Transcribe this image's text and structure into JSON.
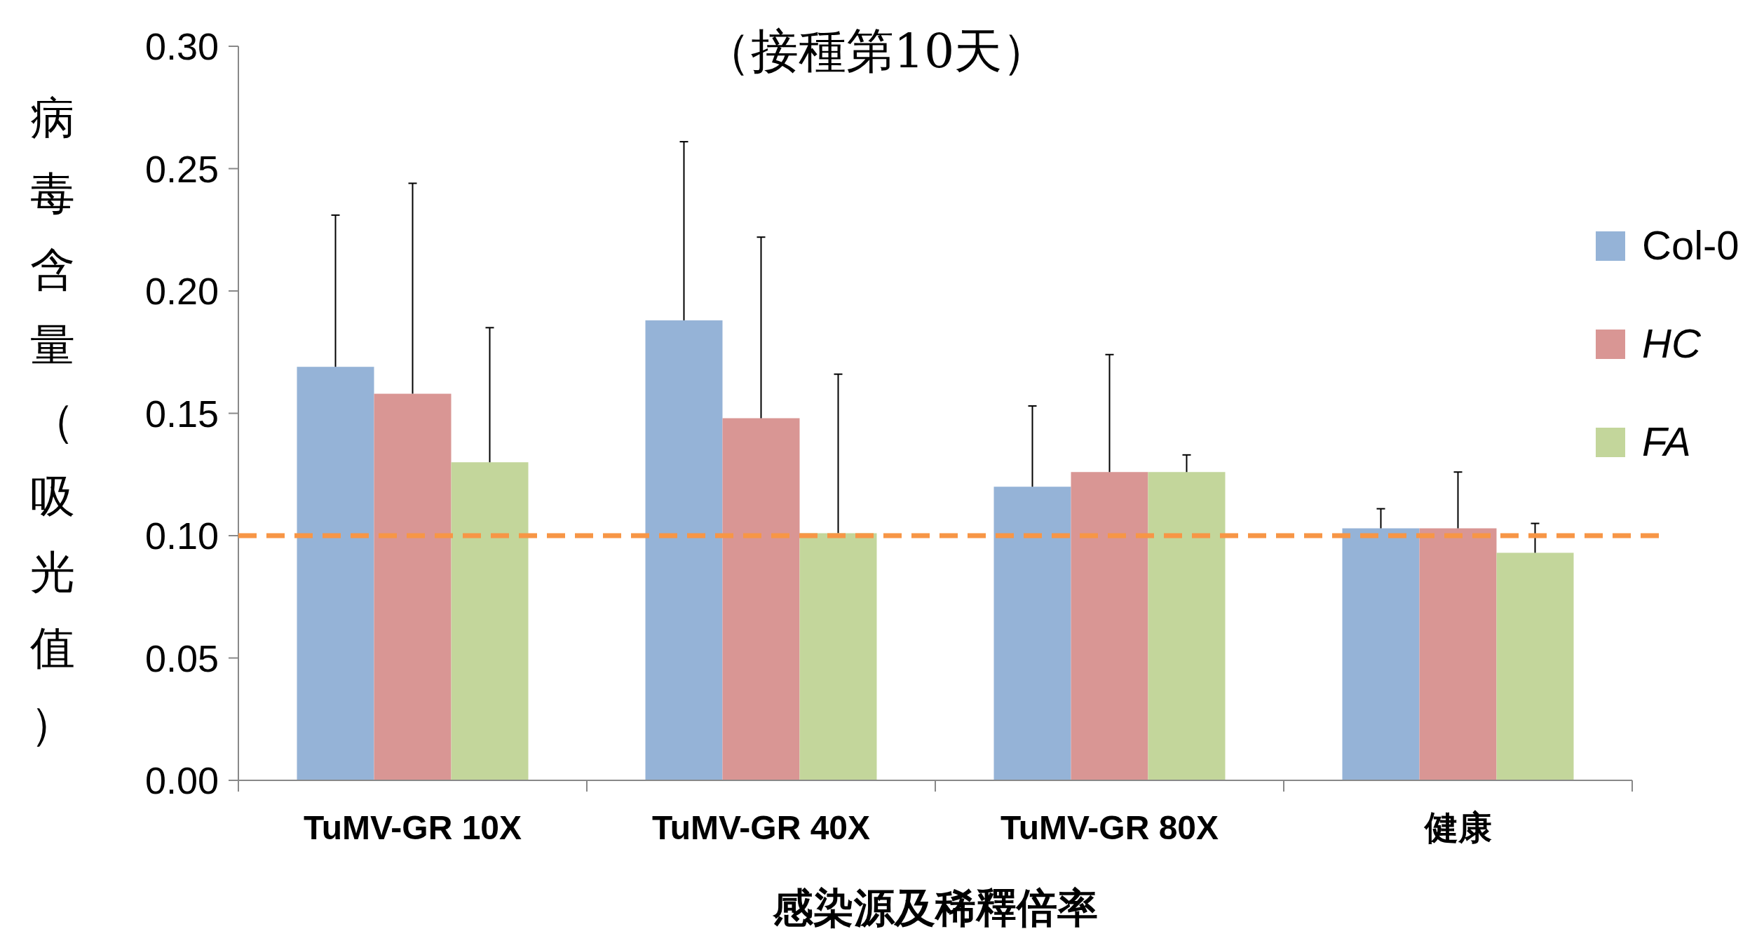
{
  "chart_data": {
    "type": "bar",
    "title": "（接種第10天）",
    "xlabel": "感染源及稀釋倍率",
    "ylabel": "病毒含量（吸光值）",
    "categories": [
      "TuMV-GR 10X",
      "TuMV-GR 40X",
      "TuMV-GR 80X",
      "健康"
    ],
    "series": [
      {
        "name": "Col-0",
        "color": "#95b3d7",
        "values": [
          0.169,
          0.188,
          0.12,
          0.103
        ],
        "errors": [
          [
            0.169,
            0.231
          ],
          [
            0.188,
            0.261
          ],
          [
            0.12,
            0.153
          ],
          [
            0.103,
            0.111
          ]
        ]
      },
      {
        "name": "HC",
        "color": "#d99694",
        "values": [
          0.158,
          0.148,
          0.126,
          0.103
        ],
        "errors": [
          [
            0.158,
            0.244
          ],
          [
            0.148,
            0.222
          ],
          [
            0.126,
            0.174
          ],
          [
            0.103,
            0.126
          ]
        ]
      },
      {
        "name": "FA",
        "color": "#c3d69b",
        "values": [
          0.13,
          0.101,
          0.126,
          0.093
        ],
        "errors": [
          [
            0.13,
            0.185
          ],
          [
            0.101,
            0.166
          ],
          [
            0.126,
            0.133
          ],
          [
            0.093,
            0.105
          ]
        ]
      }
    ],
    "ylim": [
      0,
      0.3
    ],
    "yticks": [
      {
        "value": 0,
        "label": "0.00"
      },
      {
        "value": 0.05,
        "label": "0.05"
      },
      {
        "value": 0.1,
        "label": "0.10"
      },
      {
        "value": 0.15,
        "label": "0.15"
      },
      {
        "value": 0.2,
        "label": "0.20"
      },
      {
        "value": 0.25,
        "label": "0.25"
      },
      {
        "value": 0.3,
        "label": "0.30"
      }
    ],
    "ref_lines": [
      {
        "axis": "y",
        "value": 0.1,
        "color": "#f79646",
        "line_style": "dashed"
      }
    ],
    "legend": "right"
  }
}
